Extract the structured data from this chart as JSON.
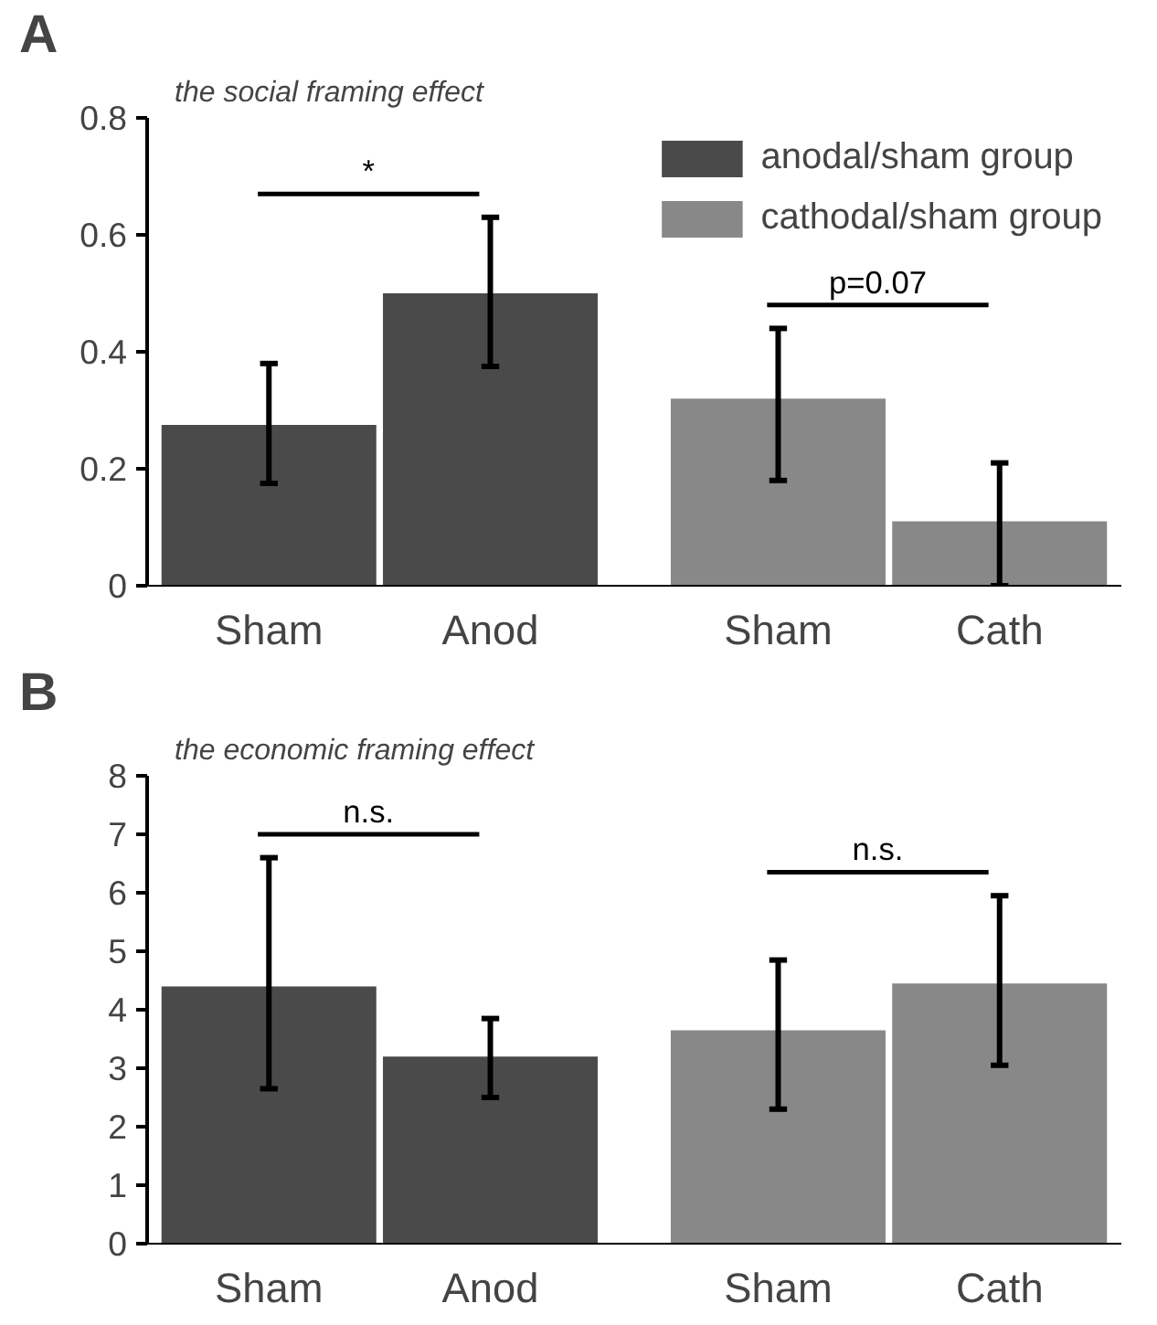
{
  "chart_data": [
    {
      "type": "bar",
      "title": "A",
      "subtitle": "the social framing effect",
      "categories": [
        "Sham",
        "Anod",
        "Sham",
        "Cath"
      ],
      "series": [
        {
          "name": "anodal/sham group",
          "color": "#4a4a4a",
          "values": [
            0.275,
            0.5,
            null,
            null
          ],
          "errors": [
            [
              0.175,
              0.38
            ],
            [
              0.375,
              0.63
            ],
            null,
            null
          ]
        },
        {
          "name": "cathodal/sham group",
          "color": "#888888",
          "values": [
            null,
            null,
            0.32,
            0.11
          ],
          "errors": [
            null,
            null,
            [
              0.18,
              0.44
            ],
            [
              0.0,
              0.21
            ]
          ]
        }
      ],
      "ylim": [
        0,
        0.8
      ],
      "yticks": [
        0,
        0.2,
        0.4,
        0.6,
        0.8
      ],
      "grid": false,
      "legend": "top right",
      "annotations": [
        "*",
        "p=0.07"
      ]
    },
    {
      "type": "bar",
      "title": "B",
      "subtitle": "the economic framing effect",
      "categories": [
        "Sham",
        "Anod",
        "Sham",
        "Cath"
      ],
      "series": [
        {
          "color": "#4a4a4a",
          "values": [
            4.4,
            3.2,
            null,
            null
          ],
          "errors": [
            [
              2.65,
              6.6
            ],
            [
              2.5,
              3.85
            ],
            null,
            null
          ]
        },
        {
          "color": "#888888",
          "values": [
            null,
            null,
            3.65,
            4.45
          ],
          "errors": [
            null,
            null,
            [
              2.3,
              4.85
            ],
            [
              3.05,
              5.95
            ]
          ]
        }
      ],
      "ylim": [
        0,
        8
      ],
      "yticks": [
        0,
        1,
        2,
        3,
        4,
        5,
        6,
        7,
        8
      ],
      "grid": false,
      "legend": false,
      "annotations": [
        "n.s.",
        "n.s."
      ]
    }
  ]
}
